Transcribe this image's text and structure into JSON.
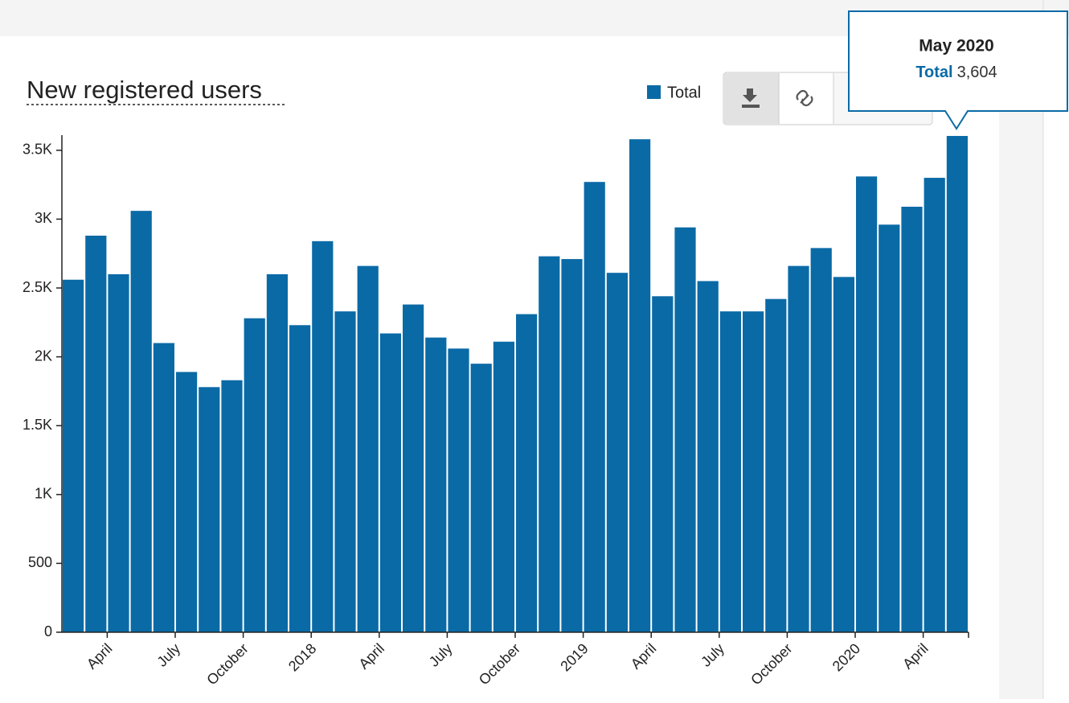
{
  "chart_data": {
    "type": "bar",
    "title": "New registered users",
    "categories": [
      null,
      null,
      "April",
      null,
      null,
      "July",
      null,
      null,
      "October",
      null,
      null,
      "2018",
      null,
      null,
      "April",
      null,
      null,
      "July",
      null,
      null,
      "October",
      null,
      null,
      "2019",
      null,
      null,
      "April",
      null,
      null,
      "July",
      null,
      null,
      "October",
      null,
      null,
      "2020",
      null,
      null,
      "April",
      null
    ],
    "series": [
      {
        "name": "Total",
        "color": "#0a6aa6",
        "values": [
          2560,
          2880,
          2600,
          3060,
          2100,
          1890,
          1780,
          1830,
          2280,
          2600,
          2230,
          2840,
          2330,
          2660,
          2170,
          2380,
          2140,
          2060,
          1950,
          2110,
          2310,
          2730,
          2710,
          3270,
          2610,
          3580,
          2440,
          2940,
          2550,
          2330,
          2330,
          2420,
          2660,
          2790,
          2580,
          3310,
          2960,
          3090,
          3300,
          3604
        ]
      }
    ],
    "ylim": [
      0,
      3610
    ],
    "yticks": [
      0,
      500,
      {
        "value": 1000,
        "label": "1K"
      },
      {
        "value": 1500,
        "label": "1.5K"
      },
      {
        "value": 2000,
        "label": "2K"
      },
      {
        "value": 2500,
        "label": "2.5K"
      },
      {
        "value": 3000,
        "label": "3K"
      },
      {
        "value": 3500,
        "label": "3.5K"
      }
    ],
    "tooltip": {
      "title": "May 2020",
      "label": "3,604"
    }
  }
}
